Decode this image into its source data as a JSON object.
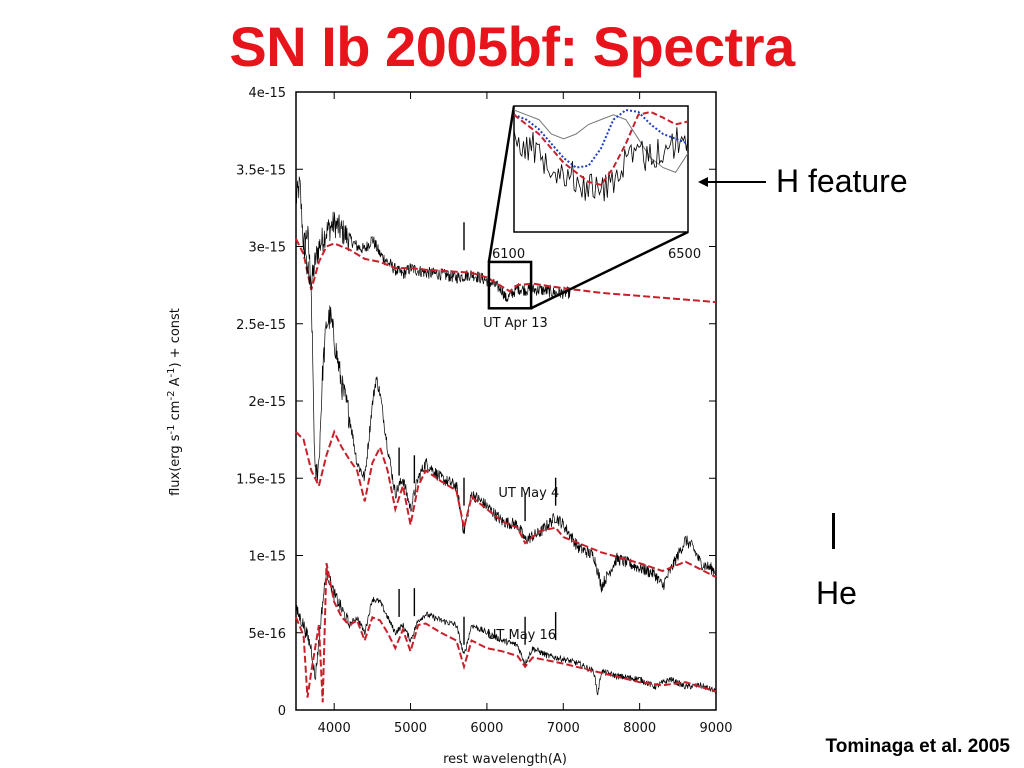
{
  "slide": {
    "title": "SN Ib 2005bf: Spectra",
    "citation": "Tominaga et al. 2005"
  },
  "annotations": {
    "h_feature_label": "H feature",
    "he_label": "He"
  },
  "colors": {
    "title": "#e8141c",
    "observed": "#000000",
    "model_red": "#c8202a",
    "model_blue": "#1f3fbf",
    "model_gray": "#777777"
  },
  "chart_data": {
    "type": "line",
    "xlabel": "rest wavelength(A)",
    "ylabel_parts": {
      "pre": "flux(erg s",
      "sup1": "-1",
      "mid1": " cm",
      "sup2": "-2",
      "mid2": " A",
      "sup3": "-1",
      "post": ") + const"
    },
    "xlim": [
      3500,
      9000
    ],
    "ylim": [
      0,
      4e-15
    ],
    "x_ticks": [
      4000,
      5000,
      6000,
      7000,
      8000,
      9000
    ],
    "x_tick_labels": [
      "4000",
      "5000",
      "6000",
      "7000",
      "8000",
      "9000"
    ],
    "y_ticks": [
      0,
      5e-16,
      1e-15,
      1.5e-15,
      2e-15,
      2.5e-15,
      3e-15,
      3.5e-15,
      4e-15
    ],
    "y_tick_labels": [
      "0",
      "5e-16",
      "1e-15",
      "1.5e-15",
      "2e-15",
      "2.5e-15",
      "3e-15",
      "3.5e-15",
      "4e-15"
    ],
    "grid": false,
    "epochs": [
      {
        "label": "UT Apr 13",
        "label_at": [
          5950,
          2.48e-15
        ],
        "observed": {
          "x": [
            3500,
            3550,
            3600,
            3650,
            3700,
            3750,
            3800,
            3900,
            4000,
            4100,
            4200,
            4300,
            4400,
            4500,
            4600,
            4700,
            4800,
            4900,
            5000,
            5200,
            5400,
            5600,
            5800,
            6000,
            6100,
            6200,
            6250,
            6300,
            6400,
            6500,
            6700,
            6900,
            7100
          ],
          "y": [
            3.3e-15,
            3.4e-15,
            3e-15,
            3.1e-15,
            2.75e-15,
            2.9e-15,
            3e-15,
            3.1e-15,
            3.15e-15,
            3.1e-15,
            3.05e-15,
            3e-15,
            2.98e-15,
            3.05e-15,
            2.95e-15,
            2.9e-15,
            2.85e-15,
            2.82e-15,
            2.86e-15,
            2.83e-15,
            2.82e-15,
            2.8e-15,
            2.82e-15,
            2.78e-15,
            2.75e-15,
            2.72e-15,
            2.66e-15,
            2.68e-15,
            2.73e-15,
            2.72e-15,
            2.72e-15,
            2.7e-15,
            2.7e-15
          ]
        },
        "model": {
          "x": [
            3500,
            3600,
            3700,
            3800,
            3900,
            4000,
            4200,
            4400,
            4600,
            4800,
            5000,
            5200,
            5500,
            5800,
            6000,
            6200,
            6300,
            6400,
            6600,
            7000,
            7500,
            8000,
            8500,
            9000
          ],
          "y": [
            3.05e-15,
            2.95e-15,
            2.72e-15,
            2.9e-15,
            3e-15,
            3.02e-15,
            2.98e-15,
            2.92e-15,
            2.9e-15,
            2.86e-15,
            2.86e-15,
            2.85e-15,
            2.84e-15,
            2.83e-15,
            2.8e-15,
            2.74e-15,
            2.71e-15,
            2.75e-15,
            2.76e-15,
            2.73e-15,
            2.7e-15,
            2.68e-15,
            2.66e-15,
            2.64e-15
          ]
        },
        "he_marks_x": [
          5700
        ]
      },
      {
        "label": "UT May 4",
        "label_at": [
          6150,
          1.38e-15
        ],
        "observed": {
          "x": [
            3600,
            3700,
            3750,
            3800,
            3850,
            3900,
            3950,
            4000,
            4100,
            4200,
            4300,
            4400,
            4500,
            4550,
            4600,
            4700,
            4800,
            4900,
            5000,
            5100,
            5200,
            5400,
            5600,
            5700,
            5800,
            6000,
            6200,
            6400,
            6500,
            6700,
            6900,
            7000,
            7200,
            7400,
            7500,
            7700,
            8000,
            8200,
            8300,
            8500,
            8600,
            8700,
            8800,
            9000
          ],
          "y": [
            3e-15,
            2.7e-15,
            1.5e-15,
            1.6e-15,
            2.2e-15,
            2.5e-15,
            2.55e-15,
            2.4e-15,
            2.1e-15,
            1.9e-15,
            1.6e-15,
            1.5e-15,
            1.98e-15,
            2.15e-15,
            2.05e-15,
            1.7e-15,
            1.4e-15,
            1.5e-15,
            1.3e-15,
            1.5e-15,
            1.6e-15,
            1.5e-15,
            1.45e-15,
            1.15e-15,
            1.4e-15,
            1.32e-15,
            1.22e-15,
            1.2e-15,
            1.1e-15,
            1.15e-15,
            1.25e-15,
            1.2e-15,
            1.05e-15,
            1e-15,
            8e-16,
            9.8e-16,
            9.2e-16,
            8.8e-16,
            8e-16,
            1e-15,
            1.1e-15,
            1.05e-15,
            9.5e-16,
            9e-16
          ]
        },
        "model": {
          "x": [
            3500,
            3600,
            3700,
            3800,
            3900,
            4000,
            4100,
            4200,
            4300,
            4400,
            4500,
            4600,
            4700,
            4800,
            4900,
            5000,
            5100,
            5200,
            5400,
            5600,
            5700,
            5800,
            6000,
            6200,
            6400,
            6500,
            6700,
            6900,
            7000,
            7200,
            7500,
            8000,
            8300,
            8600,
            9000
          ],
          "y": [
            1.8e-15,
            1.75e-15,
            1.55e-15,
            1.45e-15,
            1.65e-15,
            1.8e-15,
            1.7e-15,
            1.62e-15,
            1.55e-15,
            1.35e-15,
            1.6e-15,
            1.7e-15,
            1.55e-15,
            1.3e-15,
            1.45e-15,
            1.2e-15,
            1.45e-15,
            1.55e-15,
            1.48e-15,
            1.42e-15,
            1.18e-15,
            1.38e-15,
            1.3e-15,
            1.22e-15,
            1.18e-15,
            1.08e-15,
            1.16e-15,
            1.18e-15,
            1.12e-15,
            1.08e-15,
            1.02e-15,
            9.5e-16,
            9e-16,
            9.6e-16,
            8.6e-16
          ]
        },
        "he_marks_x": [
          4850,
          5050,
          5700,
          6500,
          6900
        ]
      },
      {
        "label": "UT May 16",
        "label_at": [
          6000,
          4.6e-16
        ],
        "observed": {
          "x": [
            3500,
            3600,
            3700,
            3750,
            3800,
            3850,
            3900,
            4000,
            4100,
            4200,
            4300,
            4400,
            4500,
            4600,
            4700,
            4800,
            4900,
            5000,
            5100,
            5200,
            5400,
            5600,
            5700,
            5800,
            6000,
            6200,
            6400,
            6500,
            6600,
            6800,
            7000,
            7200,
            7400,
            7450,
            7500,
            7700,
            8000,
            8200,
            8400,
            8600,
            8800,
            9000
          ],
          "y": [
            6.5e-16,
            5.5e-16,
            4e-16,
            2e-16,
            4.5e-16,
            7e-16,
            9e-16,
            7.5e-16,
            6.5e-16,
            5.5e-16,
            6e-16,
            5e-16,
            7.2e-16,
            7e-16,
            6e-16,
            5e-16,
            5.5e-16,
            4.5e-16,
            5.8e-16,
            6.2e-16,
            5.8e-16,
            5.5e-16,
            3.5e-16,
            5.5e-16,
            5e-16,
            4.5e-16,
            4.2e-16,
            3e-16,
            4e-16,
            3.5e-16,
            3.3e-16,
            3e-16,
            2.5e-16,
            1e-16,
            2.5e-16,
            2.2e-16,
            2e-16,
            1.5e-16,
            2e-16,
            1.5e-16,
            1.6e-16,
            1.2e-16
          ]
        },
        "model": {
          "x": [
            3500,
            3600,
            3650,
            3700,
            3800,
            3850,
            3900,
            4000,
            4100,
            4200,
            4300,
            4400,
            4500,
            4600,
            4700,
            4800,
            4900,
            5000,
            5100,
            5200,
            5400,
            5600,
            5700,
            5800,
            6000,
            6200,
            6400,
            6500,
            6600,
            7000,
            7500,
            8000,
            8300,
            8600,
            9000
          ],
          "y": [
            6e-16,
            4.8e-16,
            8e-17,
            2.5e-16,
            5.5e-16,
            5e-17,
            9.5e-16,
            7e-16,
            6e-16,
            5.5e-16,
            5.8e-16,
            4.5e-16,
            6e-16,
            5.8e-16,
            5e-16,
            4e-16,
            5.2e-16,
            3.8e-16,
            5.5e-16,
            5.6e-16,
            5e-16,
            4.5e-16,
            2.8e-16,
            4.5e-16,
            4e-16,
            3.8e-16,
            3.5e-16,
            2.8e-16,
            3.4e-16,
            3e-16,
            2.4e-16,
            1.8e-16,
            1.6e-16,
            1.8e-16,
            1.2e-16
          ]
        },
        "he_marks_x": [
          4850,
          5050,
          5700,
          6500,
          6900
        ]
      }
    ],
    "zoom_region": {
      "x": [
        6000,
        6500
      ],
      "y": [
        2.6e-15,
        2.9e-15
      ]
    },
    "inset": {
      "x_labels": [
        "6100",
        "6500"
      ],
      "x_label_values": [
        6100,
        6500
      ],
      "observed_trend": [
        0.25,
        0.35,
        0.45,
        0.55,
        0.65,
        0.72,
        0.8,
        0.85,
        0.7,
        0.55,
        0.45,
        0.5,
        0.4,
        0.35,
        0.3
      ],
      "model_red": [
        0.05,
        0.15,
        0.25,
        0.4,
        0.55,
        0.65,
        0.75,
        0.78,
        0.6,
        0.35,
        0.05,
        0.02,
        0.08,
        0.15,
        0.12
      ],
      "model_blue": [
        0.05,
        0.1,
        0.2,
        0.35,
        0.5,
        0.6,
        0.58,
        0.4,
        0.1,
        0.0,
        0.02,
        0.15,
        0.25,
        0.3,
        0.35
      ],
      "model_gray": [
        0.0,
        0.05,
        0.1,
        0.25,
        0.3,
        0.25,
        0.15,
        0.1,
        0.05,
        0.1,
        0.3,
        0.5,
        0.6,
        0.65,
        0.45
      ]
    }
  }
}
